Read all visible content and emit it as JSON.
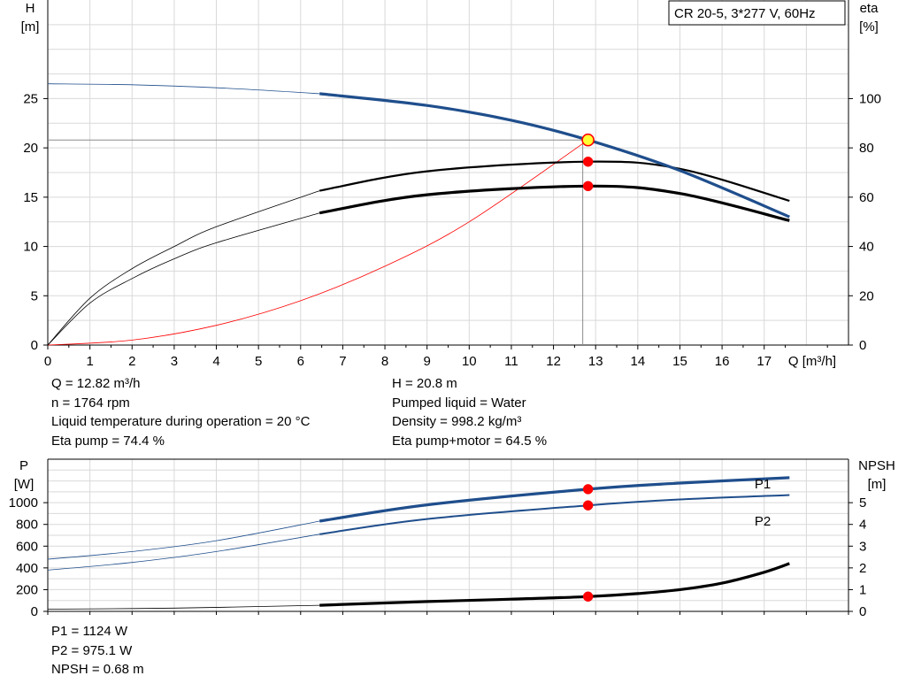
{
  "chart_data": [
    {
      "type": "line",
      "legend_box": "CR 20-5, 3*277 V, 60Hz",
      "y_label": "H",
      "y_unit": "[m]",
      "y2_label": "eta",
      "y2_unit": "[%]",
      "x_label": "Q [m³/h]",
      "xlim": [
        0,
        19
      ],
      "x_ticks": [
        "0",
        "1",
        "2",
        "3",
        "4",
        "5",
        "6",
        "7",
        "8",
        "9",
        "10",
        "11",
        "12",
        "13",
        "14",
        "15",
        "16",
        "17"
      ],
      "ylim": [
        0,
        35
      ],
      "y_ticks": [
        "0",
        "5",
        "10",
        "15",
        "20",
        "25"
      ],
      "y2lim": [
        0,
        140
      ],
      "y2_ticks": [
        "0",
        "20",
        "40",
        "60",
        "80",
        "100"
      ],
      "grid": true,
      "series": [
        {
          "kind": "head",
          "axis": "left",
          "color": "#1f4e8c",
          "x": [
            0,
            2,
            4,
            6.45,
            9,
            11,
            12.82,
            15,
            17.6
          ],
          "values": [
            26.5,
            26.4,
            26.1,
            25.5,
            24.3,
            22.8,
            20.8,
            17.7,
            13.0
          ]
        },
        {
          "kind": "eta_pump",
          "axis": "right",
          "color": "#000000",
          "x": [
            0,
            1,
            2,
            3,
            4,
            6.45,
            9,
            12.82,
            15,
            17.6
          ],
          "values": [
            0,
            19,
            31,
            40,
            48,
            62.6,
            70.5,
            74.4,
            71.5,
            58.5
          ]
        },
        {
          "kind": "eta_total",
          "axis": "right",
          "color": "#000000",
          "x": [
            0,
            1,
            2,
            3,
            4,
            6.45,
            9,
            12.82,
            15,
            17.6
          ],
          "values": [
            0,
            17,
            27,
            35,
            41.5,
            53.6,
            61,
            64.5,
            61.5,
            50.5
          ]
        },
        {
          "kind": "system_curve",
          "axis": "left",
          "color": "#ff0000",
          "x": [
            0,
            2,
            4,
            6,
            8,
            10,
            12.82
          ],
          "values": [
            0,
            0.5,
            2.0,
            4.5,
            8.0,
            12.5,
            20.8
          ]
        }
      ],
      "operating_points": [
        {
          "x": 12.82,
          "y": 20.8,
          "axis": "left",
          "style": "yellow"
        },
        {
          "x": 12.82,
          "y": 74.4,
          "axis": "right",
          "style": "red"
        },
        {
          "x": 12.82,
          "y": 64.5,
          "axis": "right",
          "style": "red"
        }
      ],
      "info_lines": [
        "Q = 12.82 m³/h",
        "n = 1764 rpm",
        "Liquid temperature during operation = 20 °C",
        "Eta pump = 74.4 %",
        "H = 20.8 m",
        "Pumped liquid = Water",
        "Density = 998.2 kg/m³",
        "Eta pump+motor = 64.5 %"
      ]
    },
    {
      "type": "line",
      "y_label": "P",
      "y_unit": "[W]",
      "y2_label": "NPSH",
      "y2_unit": "[m]",
      "xlim": [
        0,
        19
      ],
      "ylim": [
        0,
        1400
      ],
      "y_ticks": [
        "0",
        "200",
        "400",
        "600",
        "800",
        "1000"
      ],
      "y2lim": [
        0,
        7
      ],
      "y2_ticks": [
        "0",
        "1",
        "2",
        "3",
        "4",
        "5"
      ],
      "grid": true,
      "series": [
        {
          "name": "P1",
          "axis": "left",
          "color": "#1f4e8c",
          "x": [
            0,
            2,
            4,
            6.45,
            9,
            12.82,
            15,
            17.6
          ],
          "values": [
            480,
            550,
            650,
            830,
            980,
            1124,
            1180,
            1230
          ]
        },
        {
          "name": "P2",
          "axis": "left",
          "color": "#1f4e8c",
          "x": [
            0,
            2,
            4,
            6.45,
            9,
            12.82,
            15,
            17.6
          ],
          "values": [
            380,
            450,
            550,
            710,
            850,
            975.1,
            1030,
            1070
          ]
        },
        {
          "kind": "npsh",
          "axis": "right",
          "color": "#000000",
          "x": [
            0,
            3,
            6.45,
            9,
            11,
            12.82,
            14,
            15,
            16,
            17,
            17.6
          ],
          "values": [
            0.1,
            0.15,
            0.28,
            0.45,
            0.56,
            0.68,
            0.82,
            1.0,
            1.3,
            1.8,
            2.2
          ]
        }
      ],
      "operating_points": [
        {
          "x": 12.82,
          "y": 1124,
          "axis": "left",
          "style": "red"
        },
        {
          "x": 12.82,
          "y": 975.1,
          "axis": "left",
          "style": "red"
        },
        {
          "x": 12.82,
          "y": 0.68,
          "axis": "right",
          "style": "red"
        }
      ],
      "info_lines": [
        "P1 = 1124 W",
        "P2 = 975.1 W",
        "NPSH = 0.68 m"
      ]
    }
  ]
}
